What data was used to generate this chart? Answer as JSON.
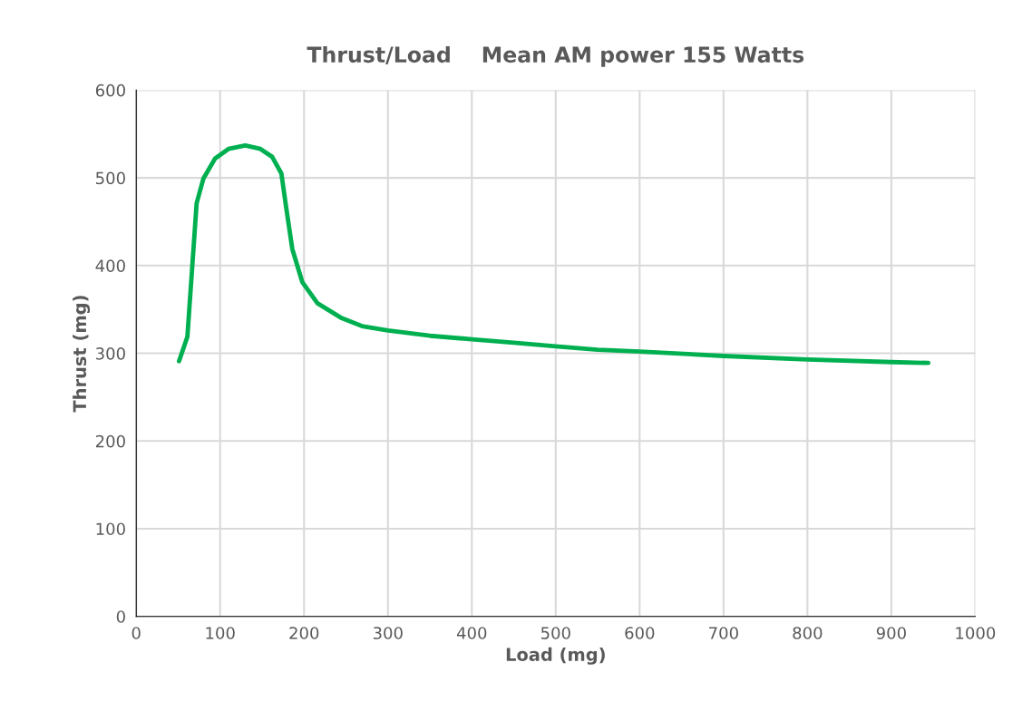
{
  "chart_data": {
    "type": "line",
    "title": "Thrust/Load    Mean AM power 155 Watts",
    "xlabel": "Load (mg)",
    "ylabel": "Thrust (mg)",
    "xlim": [
      0,
      1000
    ],
    "xticks": [
      0,
      100,
      200,
      300,
      400,
      500,
      600,
      700,
      800,
      900,
      1000
    ],
    "ylim": [
      0,
      600
    ],
    "yticks": [
      0,
      100,
      200,
      300,
      400,
      500,
      600
    ],
    "grid": true,
    "legend": false,
    "series": [
      {
        "color": "#00b050",
        "x": [
          51,
          61,
          67,
          72,
          80,
          94,
          110,
          130,
          148,
          162,
          173,
          178,
          186,
          198,
          216,
          245,
          269,
          300,
          350,
          400,
          450,
          500,
          550,
          600,
          700,
          800,
          900,
          944
        ],
        "values": [
          291,
          319,
          402,
          471,
          499,
          522,
          533,
          537,
          533,
          524,
          505,
          471,
          419,
          381,
          357,
          340,
          331,
          326,
          320,
          316,
          312,
          308,
          304,
          302,
          297,
          293,
          290,
          289
        ]
      }
    ]
  }
}
